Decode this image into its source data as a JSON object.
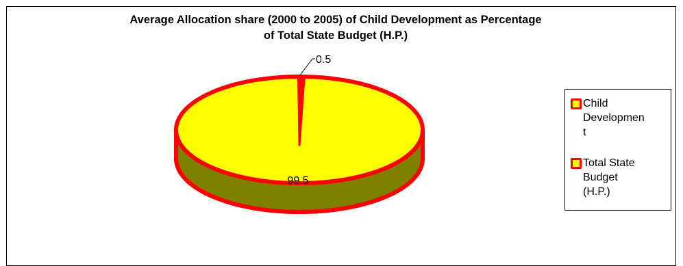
{
  "chart_data": {
    "type": "pie",
    "style": "3d",
    "title_lines": [
      "Average Allocation share (2000 to 2005) of Child Development as Percentage",
      "of Total State Budget (H.P.)"
    ],
    "slices": [
      {
        "label": "Child Development",
        "value": 0.5,
        "value_label": "0.5",
        "fill": "#ff0000"
      },
      {
        "label": "Total State Budget (H.P.)",
        "value": 99.5,
        "value_label": "99.5",
        "fill": "#ffff00"
      }
    ],
    "legend": {
      "position": "right",
      "entries": [
        {
          "lines": [
            "Child",
            "Developmen",
            "t"
          ],
          "swatch_border": "#ff0000",
          "swatch_fill": "#ffff00"
        },
        {
          "lines": [
            "Total State",
            "Budget",
            "(H.P.)"
          ],
          "swatch_border": "#ff0000",
          "swatch_fill": "#ffff00"
        }
      ]
    },
    "colors": {
      "top": "#ffff00",
      "side": "#808000",
      "outline": "#ff0000"
    }
  }
}
